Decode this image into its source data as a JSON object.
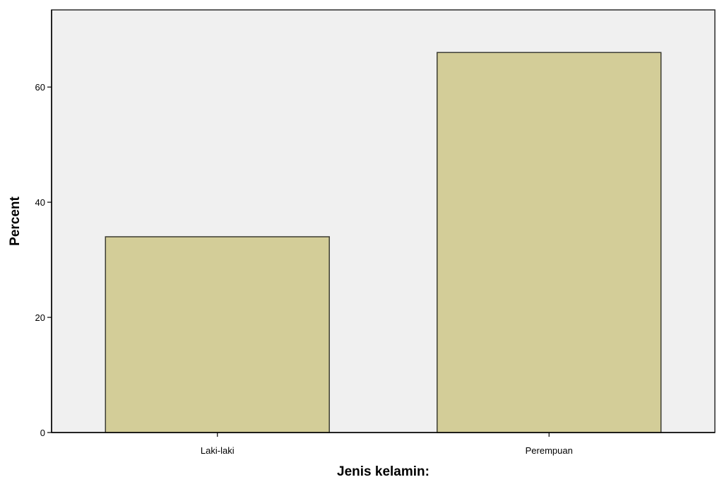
{
  "chart_data": {
    "type": "bar",
    "title": "",
    "xlabel": "Jenis kelamin:",
    "ylabel": "Percent",
    "categories": [
      "Laki-laki",
      "Perempuan"
    ],
    "values": [
      34,
      66
    ],
    "ylim": [
      0,
      73.4
    ],
    "yticks": [
      0,
      20,
      40,
      60
    ],
    "grid": false,
    "legend": "none",
    "colors": {
      "plot_background": "#f0f0f0",
      "bar_fill": "#d3cd98",
      "bar_stroke": "#3c3c32",
      "axis": "#000000"
    }
  }
}
